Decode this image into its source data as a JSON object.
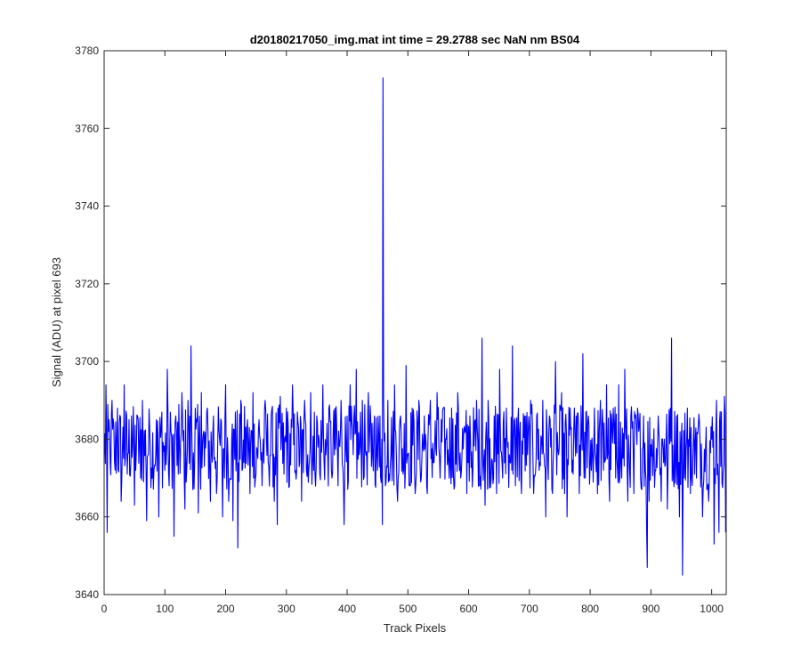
{
  "chart_data": {
    "type": "line",
    "title": "d20180217050_img.mat int time = 29.2788 sec  NaN nm BS04",
    "xlabel": "Track Pixels",
    "ylabel": "Signal (ADU) at pixel 693",
    "xlim": [
      0,
      1024
    ],
    "ylim": [
      3640,
      3780
    ],
    "xticks": [
      0,
      100,
      200,
      300,
      400,
      500,
      600,
      700,
      800,
      900,
      1000
    ],
    "yticks": [
      3640,
      3660,
      3680,
      3700,
      3720,
      3740,
      3760,
      3780
    ],
    "grid": false,
    "legend": "none",
    "series": [
      {
        "color": "#0000ff",
        "baseline": 3678,
        "points": [
          [
            0,
            3676
          ],
          [
            3,
            3694
          ],
          [
            5,
            3656
          ],
          [
            8,
            3685
          ],
          [
            10,
            3674
          ],
          [
            13,
            3690
          ],
          [
            18,
            3672
          ],
          [
            22,
            3688
          ],
          [
            28,
            3664
          ],
          [
            33,
            3694
          ],
          [
            38,
            3671
          ],
          [
            45,
            3686
          ],
          [
            50,
            3663
          ],
          [
            55,
            3686
          ],
          [
            60,
            3670
          ],
          [
            63,
            3690
          ],
          [
            70,
            3659
          ],
          [
            75,
            3683
          ],
          [
            82,
            3672
          ],
          [
            86,
            3685
          ],
          [
            90,
            3660
          ],
          [
            95,
            3687
          ],
          [
            100,
            3672
          ],
          [
            104,
            3698
          ],
          [
            107,
            3668
          ],
          [
            110,
            3682
          ],
          [
            115,
            3655
          ],
          [
            118,
            3686
          ],
          [
            122,
            3671
          ],
          [
            128,
            3692
          ],
          [
            133,
            3662
          ],
          [
            138,
            3690
          ],
          [
            143,
            3704
          ],
          [
            146,
            3667
          ],
          [
            150,
            3688
          ],
          [
            155,
            3661
          ],
          [
            160,
            3692
          ],
          [
            165,
            3673
          ],
          [
            170,
            3688
          ],
          [
            175,
            3664
          ],
          [
            180,
            3686
          ],
          [
            185,
            3666
          ],
          [
            190,
            3680
          ],
          [
            195,
            3660
          ],
          [
            200,
            3694
          ],
          [
            205,
            3664
          ],
          [
            210,
            3680
          ],
          [
            212,
            3659
          ],
          [
            216,
            3687
          ],
          [
            220,
            3652
          ],
          [
            225,
            3690
          ],
          [
            230,
            3674
          ],
          [
            235,
            3683
          ],
          [
            240,
            3666
          ],
          [
            245,
            3692
          ],
          [
            250,
            3671
          ],
          [
            255,
            3685
          ],
          [
            260,
            3668
          ],
          [
            265,
            3690
          ],
          [
            270,
            3674
          ],
          [
            275,
            3686
          ],
          [
            280,
            3664
          ],
          [
            285,
            3658
          ],
          [
            290,
            3691
          ],
          [
            296,
            3671
          ],
          [
            300,
            3688
          ],
          [
            305,
            3668
          ],
          [
            310,
            3694
          ],
          [
            315,
            3672
          ],
          [
            320,
            3683
          ],
          [
            325,
            3664
          ],
          [
            330,
            3690
          ],
          [
            335,
            3676
          ],
          [
            340,
            3692
          ],
          [
            345,
            3672
          ],
          [
            350,
            3686
          ],
          [
            355,
            3671
          ],
          [
            360,
            3694
          ],
          [
            365,
            3676
          ],
          [
            370,
            3688
          ],
          [
            375,
            3670
          ],
          [
            380,
            3688
          ],
          [
            385,
            3668
          ],
          [
            390,
            3690
          ],
          [
            395,
            3658
          ],
          [
            400,
            3686
          ],
          [
            405,
            3694
          ],
          [
            410,
            3676
          ],
          [
            415,
            3698
          ],
          [
            420,
            3676
          ],
          [
            425,
            3690
          ],
          [
            430,
            3677
          ],
          [
            435,
            3692
          ],
          [
            440,
            3673
          ],
          [
            445,
            3686
          ],
          [
            450,
            3672
          ],
          [
            454,
            3686
          ],
          [
            458,
            3658
          ],
          [
            459,
            3773
          ],
          [
            460,
            3690
          ],
          [
            463,
            3668
          ],
          [
            467,
            3690
          ],
          [
            472,
            3676
          ],
          [
            478,
            3694
          ],
          [
            483,
            3664
          ],
          [
            488,
            3686
          ],
          [
            492,
            3671
          ],
          [
            497,
            3699
          ],
          [
            502,
            3668
          ],
          [
            507,
            3688
          ],
          [
            512,
            3666
          ],
          [
            518,
            3690
          ],
          [
            522,
            3670
          ],
          [
            527,
            3686
          ],
          [
            532,
            3666
          ],
          [
            537,
            3690
          ],
          [
            543,
            3674
          ],
          [
            548,
            3692
          ],
          [
            553,
            3670
          ],
          [
            558,
            3688
          ],
          [
            563,
            3680
          ],
          [
            567,
            3674
          ],
          [
            572,
            3688
          ],
          [
            577,
            3668
          ],
          [
            582,
            3692
          ],
          [
            587,
            3670
          ],
          [
            592,
            3682
          ],
          [
            597,
            3666
          ],
          [
            602,
            3686
          ],
          [
            607,
            3672
          ],
          [
            613,
            3690
          ],
          [
            618,
            3668
          ],
          [
            622,
            3706
          ],
          [
            627,
            3663
          ],
          [
            632,
            3690
          ],
          [
            637,
            3670
          ],
          [
            642,
            3686
          ],
          [
            646,
            3666
          ],
          [
            651,
            3698
          ],
          [
            656,
            3670
          ],
          [
            662,
            3688
          ],
          [
            667,
            3676
          ],
          [
            672,
            3704
          ],
          [
            677,
            3668
          ],
          [
            682,
            3688
          ],
          [
            687,
            3666
          ],
          [
            692,
            3686
          ],
          [
            697,
            3676
          ],
          [
            702,
            3690
          ],
          [
            707,
            3666
          ],
          [
            712,
            3686
          ],
          [
            717,
            3674
          ],
          [
            722,
            3690
          ],
          [
            727,
            3660
          ],
          [
            733,
            3686
          ],
          [
            738,
            3666
          ],
          [
            743,
            3700
          ],
          [
            748,
            3676
          ],
          [
            753,
            3692
          ],
          [
            758,
            3666
          ],
          [
            762,
            3660
          ],
          [
            767,
            3688
          ],
          [
            772,
            3671
          ],
          [
            777,
            3686
          ],
          [
            782,
            3666
          ],
          [
            788,
            3702
          ],
          [
            792,
            3670
          ],
          [
            797,
            3686
          ],
          [
            802,
            3672
          ],
          [
            807,
            3688
          ],
          [
            812,
            3666
          ],
          [
            817,
            3690
          ],
          [
            822,
            3672
          ],
          [
            827,
            3694
          ],
          [
            832,
            3664
          ],
          [
            838,
            3688
          ],
          [
            842,
            3670
          ],
          [
            847,
            3694
          ],
          [
            852,
            3670
          ],
          [
            857,
            3698
          ],
          [
            862,
            3664
          ],
          [
            867,
            3686
          ],
          [
            872,
            3666
          ],
          [
            878,
            3688
          ],
          [
            883,
            3670
          ],
          [
            888,
            3686
          ],
          [
            893,
            3656
          ],
          [
            894,
            3647
          ],
          [
            897,
            3664
          ],
          [
            902,
            3680
          ],
          [
            907,
            3672
          ],
          [
            912,
            3686
          ],
          [
            917,
            3664
          ],
          [
            922,
            3680
          ],
          [
            927,
            3662
          ],
          [
            932,
            3688
          ],
          [
            934,
            3706
          ],
          [
            937,
            3670
          ],
          [
            942,
            3686
          ],
          [
            947,
            3660
          ],
          [
            952,
            3645
          ],
          [
            955,
            3670
          ],
          [
            960,
            3688
          ],
          [
            965,
            3666
          ],
          [
            970,
            3680
          ],
          [
            975,
            3670
          ],
          [
            980,
            3684
          ],
          [
            985,
            3660
          ],
          [
            990,
            3678
          ],
          [
            995,
            3664
          ],
          [
            1000,
            3680
          ],
          [
            1004,
            3653
          ],
          [
            1008,
            3690
          ],
          [
            1012,
            3656
          ],
          [
            1016,
            3687
          ],
          [
            1019,
            3672
          ],
          [
            1021,
            3691
          ],
          [
            1023,
            3656
          ]
        ]
      }
    ]
  }
}
